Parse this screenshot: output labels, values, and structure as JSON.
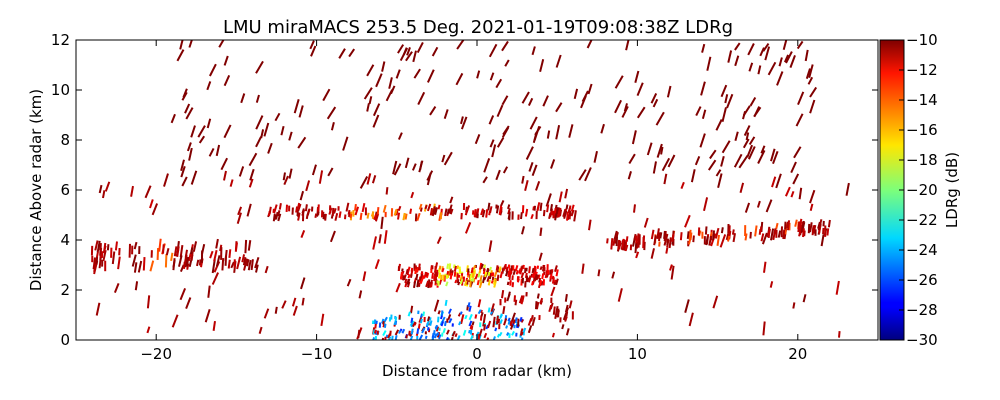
{
  "chart_data": {
    "type": "scatter",
    "title": "LMU miraMACS 253.5 Deg. 2021-01-19T09:08:38Z  LDRg",
    "xlabel": "Distance from radar (km)",
    "ylabel": "Distance Above radar  (km)",
    "xlim": [
      -25,
      25
    ],
    "ylim": [
      0,
      12
    ],
    "xticks": [
      -20,
      -10,
      0,
      10,
      20
    ],
    "xtick_labels": [
      "−20",
      "−10",
      "0",
      "10",
      "20"
    ],
    "yticks": [
      0,
      2,
      4,
      6,
      8,
      10,
      12
    ],
    "ytick_labels": [
      "0",
      "2",
      "4",
      "6",
      "8",
      "10",
      "12"
    ],
    "colorbar": {
      "label": "LDRg (dB)",
      "range": [
        -30,
        -10
      ],
      "colormap": "jet",
      "ticks": [
        -10,
        -12,
        -14,
        -16,
        -18,
        -20,
        -22,
        -24,
        -26,
        -28,
        -30
      ],
      "tick_labels": [
        "−10",
        "−12",
        "−14",
        "−16",
        "−18",
        "−20",
        "−22",
        "−24",
        "−26",
        "−28",
        "−30"
      ]
    },
    "features": [
      {
        "name": "upper scattered returns",
        "x_range": [
          -19,
          21
        ],
        "y_range": [
          6.5,
          12
        ],
        "ldr_db": -10
      },
      {
        "name": "layer near 5 km",
        "x_range": [
          -13,
          6
        ],
        "y_range": [
          4.8,
          5.4
        ],
        "ldr_db": -12
      },
      {
        "name": "layer near 3.5 km left",
        "x_range": [
          -24,
          -14
        ],
        "y_range": [
          3.0,
          3.8
        ],
        "ldr_db": -11
      },
      {
        "name": "slanted layer right",
        "x_range": [
          8,
          19
        ],
        "y_range": [
          3.6,
          4.2
        ],
        "ldr_db": -11
      },
      {
        "name": "bright band near 2.5 km",
        "x_range": [
          -5,
          4
        ],
        "y_range": [
          2.2,
          2.9
        ],
        "ldr_db": -16
      },
      {
        "name": "low-level precipitation",
        "x_range": [
          -7,
          3
        ],
        "y_range": [
          0,
          1.6
        ],
        "ldr_db": -24
      }
    ]
  }
}
